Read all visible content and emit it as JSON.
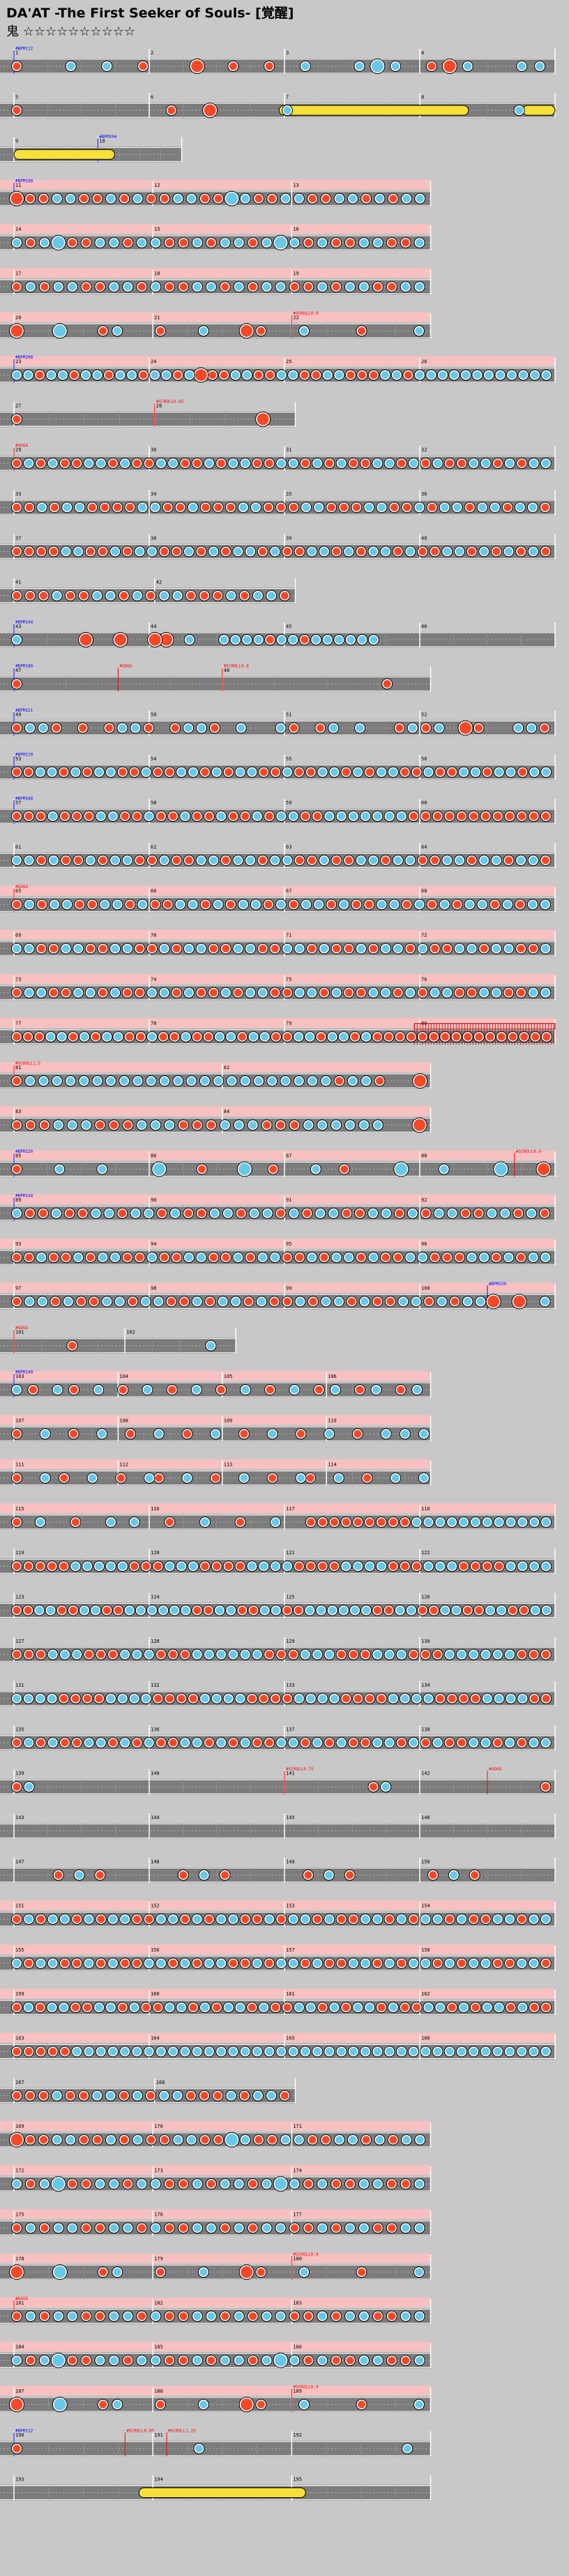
{
  "header": {
    "title": "DA'AT -The First Seeker of Souls- [覚醒]",
    "difficulty": "鬼 ☆☆☆☆☆☆☆☆☆☆"
  },
  "chart_data": {
    "type": "rhythm-chart",
    "game": "Taiko no Tatsujin",
    "rows": [
      {
        "measures": [
          "1",
          "2",
          "3",
          "4"
        ],
        "marks": [
          {
            "m": 0,
            "t": "#BPM112"
          }
        ],
        "pink": false,
        "notes": "d..k.k.d..D.d.d.k..kKk.dDk..kk",
        "roll": null
      },
      {
        "measures": [
          "5",
          "6",
          "7",
          "8"
        ],
        "marks": [],
        "pink": false,
        "notes": "d...dD.k.....k",
        "roll": [
          0.49,
          0.84,
          0.94,
          1.0
        ]
      },
      {
        "measures": [
          "9",
          "10"
        ],
        "marks": [
          {
            "m": 1,
            "t": "#BPM204"
          }
        ],
        "pink": false,
        "notes": "",
        "roll": [
          0.0,
          0.6
        ],
        "width": 0.31
      },
      {
        "measures": [
          "11",
          "12",
          "13"
        ],
        "marks": [
          {
            "m": 0,
            "t": "#BPM168"
          }
        ],
        "pink": true,
        "notes": "DddkkddkdkddkkddKkddkkddkkdkdkk",
        "width": 0.77
      },
      {
        "measures": [
          "14",
          "15",
          "16"
        ],
        "marks": [],
        "pink": true,
        "notes": "kdkKddkkdkkddkdkkdkKkdkddkkddk",
        "width": 0.77
      },
      {
        "measures": [
          "17",
          "18",
          "19"
        ],
        "marks": [],
        "pink": true,
        "notes": "dkdkkddkkdkddkkdkdkkddkdkkddkk",
        "width": 0.77
      },
      {
        "measures": [
          "20",
          "21",
          "22"
        ],
        "marks": [
          {
            "m": 2,
            "t": "#SCROLL0.9"
          }
        ],
        "pink": true,
        "notes": "D..K..dk..d..k..Dd..k...d...k",
        "width": 0.77
      },
      {
        "measures": [
          "23",
          "24",
          "25",
          "26"
        ],
        "marks": [
          {
            "m": 0,
            "t": "#BPM208"
          }
        ],
        "pink": true,
        "notes": "kkdkkdkkdkkdkkdkDddkkddkkddkkdddkkdkkkkkkkkkkkk"
      },
      {
        "measures": [
          "27",
          "28"
        ],
        "marks": [
          {
            "m": 1,
            "t": "#SCROLL0.85"
          }
        ],
        "pink": false,
        "notes": "d......D",
        "width": 0.52
      },
      {
        "measures": [
          "29",
          "30",
          "31",
          "32"
        ],
        "marks": [
          {
            "m": 0,
            "t": "#GOGO"
          }
        ],
        "pink": false,
        "notes": "dkdkddkkdkddkkddkdkkddkkdkdkddkkdkdkddkkdkdkk"
      },
      {
        "measures": [
          "33",
          "34",
          "35",
          "36"
        ],
        "marks": [],
        "pink": false,
        "notes": "ddkdkkddddkkddkdddkkdddkkdddkkddkdkkdkkdkkd"
      },
      {
        "measures": [
          "37",
          "38",
          "39",
          "40"
        ],
        "marks": [],
        "pink": false,
        "notes": "ddddkkddkdkkddkdkdkkdkddkkdkdkkdkddkkdkdkdkd"
      },
      {
        "measures": [
          "41",
          "42"
        ],
        "marks": [],
        "pink": false,
        "notes": "dddkddkkdkdkkdddkdkkd",
        "width": 0.52
      },
      {
        "measures": [
          "43",
          "44",
          "45",
          "46"
        ],
        "marks": [
          {
            "m": 0,
            "t": "#BPM144"
          }
        ],
        "pink": false,
        "notes": "k.....D..D..DD.k..kkkkdkkdkkkkkk..............."
      },
      {
        "measures": [
          "47",
          "48"
        ],
        "marks": [
          {
            "m": 0,
            "t": "#BPM180"
          },
          {
            "m": 1,
            "t": "#SCROLL0.8"
          },
          {
            "m": 0.5,
            "t": "#GOGO"
          }
        ],
        "pink": false,
        "notes": "d.......d",
        "width": 0.77
      },
      {
        "measures": [
          "49",
          "50",
          "51",
          "52"
        ],
        "marks": [
          {
            "m": 0,
            "t": "#BPM221"
          }
        ],
        "pink": false,
        "notes": "dkkd.d.dkkd.dkkd.k..kd.dk.k..dkdk.Dd..kkd"
      },
      {
        "measures": [
          "53",
          "54",
          "55",
          "56"
        ],
        "marks": [
          {
            "m": 0,
            "t": "#BPM210"
          }
        ],
        "pink": false,
        "notes": "ddkkdkdkkddkddkkdkdkkddkddkkdkdkkddkddkkdkkdkk"
      },
      {
        "measures": [
          "57",
          "58",
          "59",
          "60"
        ],
        "marks": [
          {
            "m": 0,
            "t": "#BPM168"
          }
        ],
        "pink": false,
        "notes": "dddkdddkkddkddkddkddkdkkddkkkkkkkdddddddddddd"
      },
      {
        "measures": [
          "61",
          "62",
          "63",
          "64"
        ],
        "marks": [],
        "pink": false,
        "notes": "kkdkddkdkkddkddkkdkkdkkddkddkkdkkddkkdkkdkkd"
      },
      {
        "measures": [
          "65",
          "66",
          "67",
          "68"
        ],
        "marks": [
          {
            "m": 0,
            "t": "#GOGO"
          }
        ],
        "pink": true,
        "notes": "dkdkkddkkdkddkkdkdkkdkdkkdkddkkdkdkdkkdkdkk"
      },
      {
        "measures": [
          "69",
          "70",
          "71",
          "72"
        ],
        "marks": [],
        "pink": true,
        "notes": "kkddkkddkkddkdkkddkkddkkdkddkdkkdkddkkdkkddk"
      },
      {
        "measures": [
          "73",
          "74",
          "75",
          "76"
        ],
        "marks": [],
        "pink": true,
        "notes": "dkkddkkdkddkkdkddkdkkddkkdkddkkdkdkkddkkddkk"
      },
      {
        "measures": [
          "77",
          "78",
          "79",
          "80"
        ],
        "marks": [],
        "pink": true,
        "notes": "dddkkdkdkkddkddkddkkdkkddkkdkkdkdddddddddddddddd",
        "fence": [
          0.74,
          1.0
        ]
      },
      {
        "measures": [
          "81",
          "82"
        ],
        "marks": [
          {
            "m": 0,
            "t": "#SCROLL1.5"
          }
        ],
        "pink": true,
        "notes": "dkkkkkkkkkkkkkkkkkkkkkkkdkkd..D",
        "width": 0.77
      },
      {
        "measures": [
          "83",
          "84"
        ],
        "marks": [],
        "pink": true,
        "notes": "dddkkkdddkkkdddkkkdddkkkkkk..D",
        "width": 0.77
      },
      {
        "measures": [
          "85",
          "86",
          "87",
          "88"
        ],
        "marks": [
          {
            "m": 0,
            "t": "#BPM220"
          },
          {
            "m": 3.7,
            "t": "#SCROLL0.9"
          }
        ],
        "pink": true,
        "notes": "d..k..k...K..d..K.d..k.d...K..k...K..D"
      },
      {
        "measures": [
          "89",
          "90",
          "91",
          "92"
        ],
        "marks": [
          {
            "m": 0,
            "t": "#BPM144"
          }
        ],
        "pink": true,
        "notes": "kddkddkkdkkdkddkkdkkdkdkkddkkdkdkkddkkdkd"
      },
      {
        "measures": [
          "93",
          "94",
          "95",
          "96"
        ],
        "marks": [],
        "pink": true,
        "notes": "ddkddkdkkddkddkkddkdkkddkdkkdkddkkdddkkdkdkk"
      },
      {
        "measures": [
          "97",
          "98",
          "99",
          "100"
        ],
        "marks": [
          {
            "m": 3.5,
            "t": "#BPM230"
          }
        ],
        "pink": true,
        "notes": "dkkdkddkkdkkddkdkkdkddkdkkdkddkkdkdkkD.D.k"
      },
      {
        "measures": [
          "101",
          "102"
        ],
        "marks": [
          {
            "m": 0,
            "t": "#GOGO"
          }
        ],
        "pink": false,
        "notes": "..d....k",
        "width": 0.41
      },
      {
        "measures": [
          "103",
          "104",
          "105",
          "106"
        ],
        "marks": [
          {
            "m": 0,
            "t": "#BPM240"
          }
        ],
        "pink": true,
        "notes": "k.d..k.d..k..d..k..d..k..d..k..d..k..d.k..d.k..d.k.",
        "width": 0.77
      },
      {
        "measures": [
          "107",
          "108",
          "109",
          "110"
        ],
        "marks": [],
        "pink": true,
        "notes": "d..k..d..k..d..k..d..k..d..k..d..k..d..k.k.k",
        "width": 0.77
      },
      {
        "measures": [
          "111",
          "112",
          "113",
          "114"
        ],
        "marks": [],
        "pink": true,
        "notes": "d..k.d..k..d..kd..k..d..k..d..kd..k..d..k..k",
        "width": 0.77
      },
      {
        "measures": [
          "115",
          "116",
          "117",
          "118"
        ],
        "marks": [],
        "pink": true,
        "notes": "d.k..d..k.k..d..k..d..k..dddddddddkkkkkkkkkkkk"
      },
      {
        "measures": [
          "119",
          "120",
          "121",
          "122"
        ],
        "marks": [],
        "pink": false,
        "notes": "dddddkkkkkdddkkkddddkkkkddddkkkkdddkkkddddkkkk"
      },
      {
        "measures": [
          "123",
          "124",
          "125",
          "126"
        ],
        "marks": [],
        "pink": false,
        "notes": "ddkkddkkddkkkkkkddkkddkkddkkkkkkddkkddkkddkkddkk"
      },
      {
        "measures": [
          "127",
          "128",
          "129",
          "130"
        ],
        "marks": [],
        "pink": false,
        "notes": "dddkkkdddkkkdddkkkkkkdddkkkdddkkkdddkkkkkkddd"
      },
      {
        "measures": [
          "131",
          "132",
          "133",
          "134"
        ],
        "marks": [],
        "pink": false,
        "notes": "kkkkddddkkkkddddkkkkddddkkkkddddkkkkddddkkkkdd"
      },
      {
        "measures": [
          "135",
          "136",
          "137",
          "138"
        ],
        "marks": [],
        "pink": false,
        "notes": "dkdkddkkdkdkddkkdkdkddkkdkdkddkkdkdkddkkdkdkk"
      },
      {
        "measures": [
          "139",
          "140",
          "141",
          "142"
        ],
        "marks": [
          {
            "m": 2,
            "t": "#SCROLL0.75"
          },
          {
            "m": 3.5,
            "t": "#GOGO"
          }
        ],
        "pink": false,
        "notes": "dk...........................dk............d"
      },
      {
        "measures": [
          "143",
          "144",
          "145",
          "146"
        ],
        "marks": [],
        "pink": false,
        "notes": "..........................."
      },
      {
        "measures": [
          "147",
          "148",
          "149",
          "150"
        ],
        "marks": [],
        "pink": false,
        "notes": "..dkd...dkd...dkd...dkd..."
      },
      {
        "measures": [
          "151",
          "152",
          "153",
          "154"
        ],
        "marks": [],
        "pink": true,
        "notes": "dkdkkdkdkkddkkdkdkkddkdkkdkddkkdkdkkdkddkkdkk"
      },
      {
        "measures": [
          "155",
          "156",
          "157",
          "158"
        ],
        "marks": [],
        "pink": true,
        "notes": "kdkkddkdkddkkdkdkkddkdkkdkddkkdkdkkdkdkkddkkd"
      },
      {
        "measures": [
          "159",
          "160",
          "161",
          "162"
        ],
        "marks": [],
        "pink": true,
        "notes": "dkdkkddkkdkddkkdkdkkdkddkkdkdkkdkddkkdkdkkdkdd"
      },
      {
        "measures": [
          "163",
          "164",
          "165",
          "166"
        ],
        "marks": [],
        "pink": true,
        "notes": "dddddkkkkkkkkkkkkkkkkkkkkkkkkkkkkkkkkkkkkkkkk"
      },
      {
        "measures": [
          "167",
          "168"
        ],
        "marks": [],
        "pink": false,
        "notes": "dddkddkkdkdkkdddkdkkd",
        "width": 0.52
      },
      {
        "measures": [
          "169",
          "170",
          "171"
        ],
        "marks": [],
        "pink": true,
        "notes": "DddkkddkdkddkkddKkddkkddkkdkdkk",
        "width": 0.77
      },
      {
        "measures": [
          "172",
          "173",
          "174"
        ],
        "marks": [],
        "pink": true,
        "notes": "kdkKddkkdkkddkdkkdkKkdkddkkddk",
        "width": 0.77
      },
      {
        "measures": [
          "175",
          "176",
          "177"
        ],
        "marks": [],
        "pink": true,
        "notes": "dkdkkddkkdkddkkdkdkkddkdkkddkk",
        "width": 0.77
      },
      {
        "measures": [
          "178",
          "179",
          "180"
        ],
        "marks": [
          {
            "m": 2,
            "t": "#SCROLL0.9"
          }
        ],
        "pink": true,
        "notes": "D..K..dk..d..k..Dd..k...d...k",
        "width": 0.77
      },
      {
        "measures": [
          "181",
          "182",
          "183"
        ],
        "marks": [
          {
            "m": 0,
            "t": "#GOGO"
          }
        ],
        "pink": true,
        "notes": "dkdkkddkkdkddkkdkdkkddkdkkddkk",
        "width": 0.77
      },
      {
        "measures": [
          "184",
          "185",
          "186"
        ],
        "marks": [],
        "pink": true,
        "notes": "kdkKddkkdkkddkdkkdkKkdkddkkddk",
        "width": 0.77
      },
      {
        "measures": [
          "187",
          "188",
          "189"
        ],
        "marks": [
          {
            "m": 2,
            "t": "#SCROLL0.9"
          }
        ],
        "pink": true,
        "notes": "D..K..dk..d..k..Dd..k...d...k",
        "width": 0.77
      },
      {
        "measures": [
          "190",
          "191",
          "192"
        ],
        "marks": [
          {
            "m": 0,
            "t": "#BPM112"
          },
          {
            "m": 0.8,
            "t": "#SCROLL0.85"
          },
          {
            "m": 1.1,
            "t": "#SCROLL1.25"
          }
        ],
        "pink": false,
        "notes": "d......k.......k",
        "width": 0.77
      },
      {
        "measures": [
          "193",
          "194",
          "195"
        ],
        "marks": [],
        "pink": false,
        "notes": "",
        "roll": [
          0.3,
          0.7
        ],
        "width": 0.77
      }
    ]
  },
  "colors": {
    "don": "#f84828",
    "ka": "#68c8e8",
    "roll": "#f8e038",
    "lane": "#7c7c7c",
    "gogo_band": "#f8c0c0",
    "measure_text": "#000000",
    "event_blue": "#0000ff",
    "event_red": "#ff0000"
  }
}
